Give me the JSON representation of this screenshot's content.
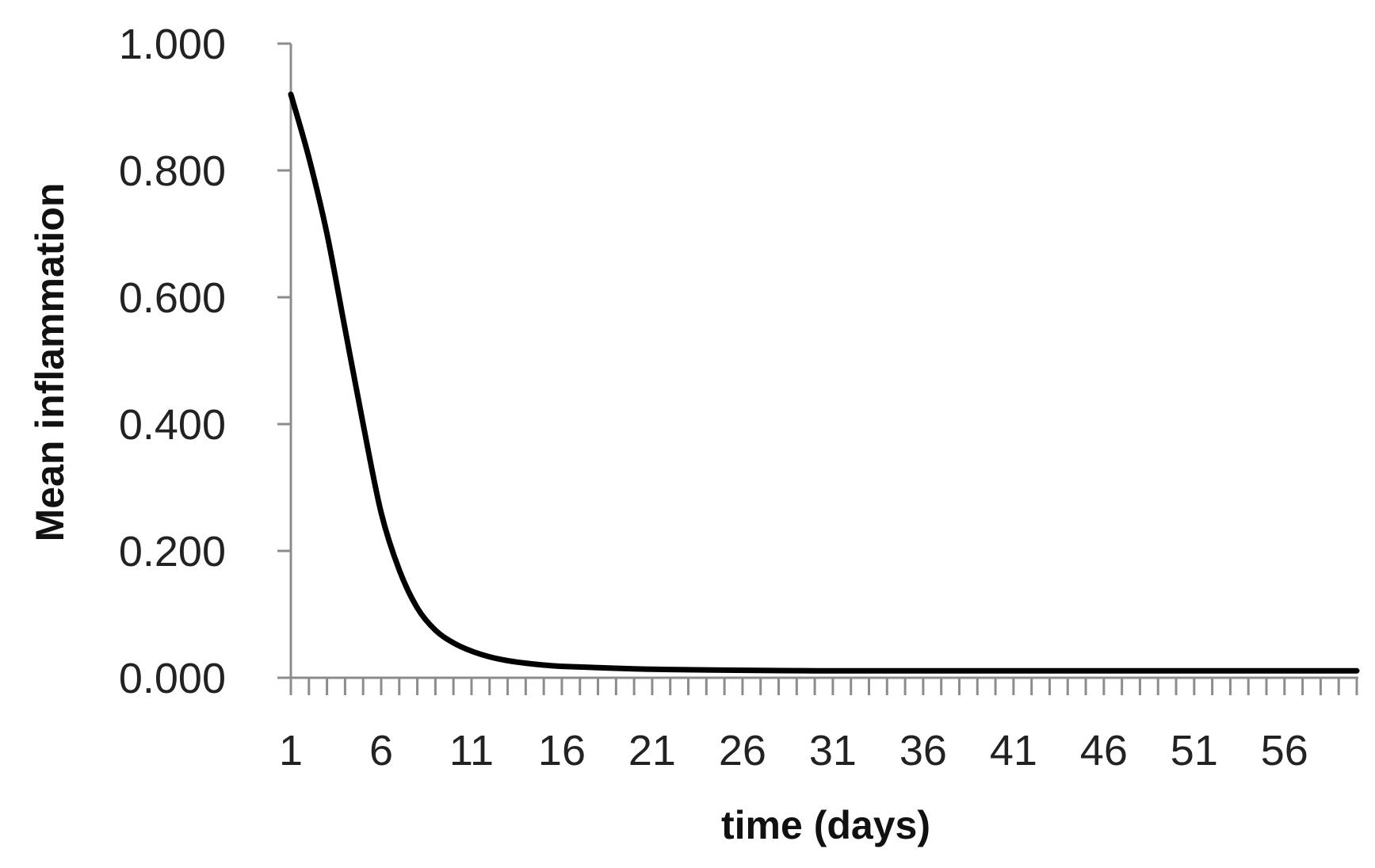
{
  "chart_data": {
    "type": "line",
    "title": "",
    "xlabel": "time (days)",
    "ylabel": "Mean inflammation",
    "xlim": [
      1,
      60
    ],
    "ylim": [
      0,
      1
    ],
    "x_tick_labels": [
      "1",
      "6",
      "11",
      "16",
      "21",
      "26",
      "31",
      "36",
      "41",
      "46",
      "51",
      "56"
    ],
    "y_tick_labels": [
      "0.000",
      "0.200",
      "0.400",
      "0.600",
      "0.800",
      "1.000"
    ],
    "grid": false,
    "legend": "none",
    "series": [
      {
        "color": "#000000",
        "x": [
          1,
          2,
          3,
          4,
          5,
          6,
          7,
          8,
          9,
          10,
          11,
          12,
          13,
          14,
          15,
          16,
          18,
          20,
          22,
          25,
          30,
          35,
          40,
          45,
          50,
          55,
          60
        ],
        "y": [
          0.92,
          0.82,
          0.7,
          0.55,
          0.4,
          0.26,
          0.17,
          0.11,
          0.075,
          0.055,
          0.042,
          0.033,
          0.027,
          0.023,
          0.02,
          0.018,
          0.016,
          0.014,
          0.013,
          0.012,
          0.011,
          0.011,
          0.011,
          0.011,
          0.011,
          0.011,
          0.011
        ]
      }
    ]
  }
}
